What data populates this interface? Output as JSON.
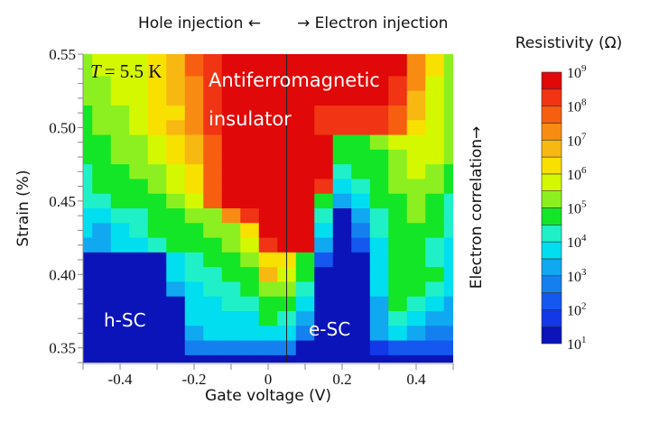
{
  "chart_data": {
    "type": "heatmap",
    "top_annotation": {
      "left": "Hole injection ←",
      "right": "→ Electron injection"
    },
    "xlabel": "Gate voltage (V)",
    "ylabel": "Strain (%)",
    "right_annotation": "Electron correlation→",
    "xlim": [
      -0.5,
      0.5
    ],
    "ylim": [
      0.34,
      0.55
    ],
    "x_ticks": [
      -0.4,
      -0.2,
      0,
      0.2,
      0.4
    ],
    "x_tick_labels": [
      "-0.4",
      "-0.2",
      "0",
      "0.2",
      "0.4"
    ],
    "y_ticks": [
      0.35,
      0.4,
      0.45,
      0.5,
      0.55
    ],
    "y_tick_labels": [
      "0.35",
      "0.40",
      "0.45",
      "0.50",
      "0.55"
    ],
    "vertical_marker_x": 0.05,
    "temperature_label": {
      "symbol": "T",
      "text": "= 5.5 K"
    },
    "region_labels": {
      "afm_line1": "Antiferromagnetic",
      "afm_line2": "insulator",
      "hole_sc": "h-SC",
      "electron_sc": "e-SC"
    },
    "colorbar": {
      "title": "Resistivity (Ω)",
      "scale": "log",
      "range_log10": [
        1,
        9
      ],
      "tick_labels": [
        {
          "base": "10",
          "exp": "9"
        },
        {
          "base": "10",
          "exp": "8"
        },
        {
          "base": "10",
          "exp": "7"
        },
        {
          "base": "10",
          "exp": "6"
        },
        {
          "base": "10",
          "exp": "5"
        },
        {
          "base": "10",
          "exp": "4"
        },
        {
          "base": "10",
          "exp": "3"
        },
        {
          "base": "10",
          "exp": "2"
        },
        {
          "base": "10",
          "exp": "1"
        }
      ],
      "level_colors_low_to_high": [
        "#0a14b8",
        "#1238e8",
        "#1458f0",
        "#1480f0",
        "#10a8f0",
        "#00def0",
        "#20f0c8",
        "#12e626",
        "#8cf020",
        "#d4f800",
        "#f8e000",
        "#f8b812",
        "#f88c12",
        "#f85e10",
        "#f03414",
        "#e00808"
      ]
    },
    "x": [
      -0.5,
      -0.45,
      -0.4,
      -0.35,
      -0.3,
      -0.25,
      -0.2,
      -0.15,
      -0.1,
      -0.05,
      0,
      0.05,
      0.1,
      0.15,
      0.2,
      0.25,
      0.3,
      0.35,
      0.4,
      0.45,
      0.5
    ],
    "y": [
      0.55,
      0.54,
      0.53,
      0.52,
      0.51,
      0.5,
      0.49,
      0.48,
      0.47,
      0.46,
      0.45,
      0.44,
      0.43,
      0.42,
      0.41,
      0.4,
      0.39,
      0.38,
      0.37,
      0.36,
      0.35,
      0.34
    ],
    "z_log10_resistivity_level": [
      [
        5,
        5.5,
        5.5,
        5.5,
        6,
        6.5,
        7.5,
        8,
        8.5,
        8.5,
        8.5,
        8.5,
        8.5,
        8.5,
        8.5,
        8.5,
        8.5,
        8.5,
        7,
        6,
        5
      ],
      [
        5,
        5.5,
        5.5,
        5.5,
        6,
        6.5,
        7.5,
        8,
        8.5,
        8.5,
        8.5,
        8.5,
        8.5,
        8.5,
        8.5,
        8.5,
        8.5,
        8.5,
        7,
        6,
        5
      ],
      [
        5,
        5,
        5.5,
        5.5,
        6,
        6.5,
        7,
        8,
        8.5,
        8.5,
        8.5,
        8.5,
        8.5,
        8.5,
        8.5,
        8.5,
        8.5,
        8,
        7,
        5.5,
        5
      ],
      [
        5,
        5,
        5.5,
        5.5,
        6,
        6.5,
        7,
        8,
        8.5,
        8.5,
        8.5,
        8.5,
        8.5,
        8.5,
        8.5,
        8.5,
        8.5,
        8,
        6.5,
        5.5,
        5
      ],
      [
        4.5,
        5,
        5,
        5.5,
        6,
        6,
        7,
        8,
        8.5,
        8.5,
        8.5,
        8.5,
        8.5,
        8,
        8,
        8,
        8,
        7.5,
        6.5,
        5.5,
        5
      ],
      [
        4.5,
        5,
        5,
        5.5,
        6,
        6.5,
        7,
        8,
        8.5,
        8.5,
        8.5,
        8.5,
        8.5,
        8,
        8,
        8,
        8,
        7.5,
        6,
        5.5,
        5
      ],
      [
        4.5,
        4.5,
        5,
        5,
        5.5,
        6,
        6.5,
        7.5,
        8.5,
        8.5,
        8.5,
        8.5,
        8.5,
        8.5,
        4.5,
        4.5,
        5,
        5.5,
        5.5,
        5.5,
        5
      ],
      [
        4.5,
        4.5,
        5,
        5,
        5.5,
        6,
        6.5,
        7.5,
        8.5,
        8.5,
        8.5,
        8.5,
        8.5,
        8.5,
        4.5,
        4.5,
        4.5,
        5,
        5.5,
        5.5,
        5
      ],
      [
        4,
        4.5,
        4.5,
        5,
        5,
        5.5,
        6,
        7.5,
        8.5,
        8.5,
        8.5,
        8.5,
        8.5,
        8.5,
        4,
        4.5,
        4.5,
        5,
        5.5,
        5,
        4.5
      ],
      [
        4,
        4.5,
        4.5,
        4.5,
        5,
        5.5,
        6,
        7.5,
        8.5,
        8.5,
        8.5,
        8.5,
        8.5,
        8,
        3.5,
        4,
        4.5,
        5,
        5,
        5,
        4.5
      ],
      [
        4,
        4,
        4.5,
        4.5,
        4.5,
        5,
        5.5,
        7.5,
        8.5,
        8.5,
        8.5,
        8.5,
        8.5,
        4.5,
        3,
        3.5,
        4.5,
        4.5,
        5,
        4.5,
        4
      ],
      [
        3.5,
        3.5,
        4,
        4,
        4.5,
        4.5,
        5,
        5,
        7,
        8,
        8.5,
        8.5,
        8.5,
        4,
        1,
        3,
        4,
        4.5,
        5,
        4.5,
        4
      ],
      [
        3.5,
        3,
        3.5,
        4,
        4.5,
        4.5,
        4.5,
        5,
        5,
        6,
        8.5,
        8.5,
        8.5,
        3.5,
        1,
        2.5,
        4,
        4.5,
        4.5,
        4.5,
        4
      ],
      [
        3,
        3,
        3.5,
        3.5,
        4,
        4.5,
        4.5,
        4.5,
        5,
        5.5,
        8,
        8.5,
        8.5,
        3,
        1,
        2,
        3.5,
        4.5,
        4.5,
        4,
        3.5
      ],
      [
        1,
        1,
        1,
        1,
        1,
        3.5,
        4,
        4.5,
        4.5,
        5,
        6,
        6,
        4.5,
        2,
        1,
        1,
        3.5,
        4.5,
        4.5,
        4,
        3.5
      ],
      [
        1,
        1,
        1,
        1,
        1,
        3.5,
        4,
        4,
        4.5,
        4.5,
        6.5,
        5.5,
        4.5,
        1,
        1,
        1,
        3.5,
        4.5,
        4.5,
        4.5,
        3.5
      ],
      [
        1,
        1,
        1,
        1,
        1,
        3,
        3.5,
        4,
        4,
        4.5,
        5,
        5,
        4,
        1,
        1,
        1,
        3.5,
        4.5,
        4.5,
        4,
        3.5
      ],
      [
        1,
        1,
        1,
        1,
        1,
        1,
        3.5,
        3.5,
        4,
        4,
        4.5,
        4.5,
        3.5,
        1,
        1,
        1,
        3,
        4.5,
        4,
        3.5,
        3
      ],
      [
        1,
        1,
        1,
        1,
        1,
        1,
        3.5,
        3.5,
        3.5,
        3.5,
        4.5,
        4,
        3,
        1,
        1,
        1,
        3,
        4,
        3.5,
        3,
        3
      ],
      [
        1,
        1,
        1,
        1,
        1,
        1,
        3,
        3.5,
        3.5,
        3.5,
        3.5,
        3.5,
        2.5,
        1,
        1,
        1,
        3,
        3.5,
        3,
        2.5,
        2.5
      ],
      [
        1,
        1,
        1,
        1,
        1,
        1,
        2.5,
        2.5,
        2.5,
        2.5,
        2.5,
        2.5,
        1,
        1,
        1,
        1,
        1.5,
        2,
        2,
        2,
        2
      ],
      [
        1,
        1,
        1,
        1,
        1,
        1,
        1,
        1,
        1,
        1,
        1,
        1,
        1,
        1,
        1,
        1,
        1,
        1,
        1,
        1,
        1
      ]
    ]
  }
}
